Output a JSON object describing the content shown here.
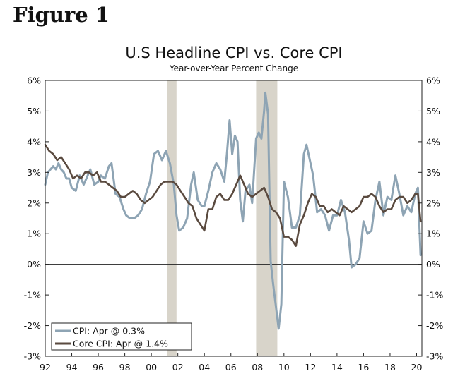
{
  "figure_label": "Figure 1",
  "chart_data": {
    "type": "line",
    "title": "U.S Headline CPI vs. Core CPI",
    "subtitle": "Year-over-Year Percent Change",
    "x_range": [
      1992,
      2020.4
    ],
    "ylim": [
      -3,
      6
    ],
    "y_ticks": [
      6,
      5,
      4,
      3,
      2,
      1,
      0,
      -1,
      -2,
      -3
    ],
    "y_tick_labels": [
      "6%",
      "5%",
      "4%",
      "3%",
      "2%",
      "1%",
      "0%",
      "-1%",
      "-2%",
      "-3%"
    ],
    "x_ticks": [
      1992,
      1994,
      1996,
      1998,
      2000,
      2002,
      2004,
      2006,
      2008,
      2010,
      2012,
      2014,
      2016,
      2018,
      2020
    ],
    "x_tick_labels": [
      "92",
      "94",
      "96",
      "98",
      "00",
      "02",
      "04",
      "06",
      "08",
      "10",
      "12",
      "14",
      "16",
      "18",
      "20"
    ],
    "recessions": [
      {
        "start": 2001.2,
        "end": 2001.9
      },
      {
        "start": 2007.9,
        "end": 2009.5
      }
    ],
    "legend": {
      "position": "bottom-left"
    },
    "series": [
      {
        "name": "CPI",
        "legend_label": "CPI: Apr @ 0.3%",
        "color": "#8ea4b4",
        "x": [
          1992.0,
          1992.2,
          1992.4,
          1992.6,
          1992.8,
          1993.0,
          1993.2,
          1993.4,
          1993.6,
          1993.8,
          1994.0,
          1994.3,
          1994.6,
          1994.9,
          1995.2,
          1995.4,
          1995.7,
          1996.0,
          1996.2,
          1996.5,
          1996.8,
          1997.0,
          1997.3,
          1997.6,
          1997.9,
          1998.1,
          1998.4,
          1998.7,
          1999.0,
          1999.3,
          1999.6,
          1999.9,
          2000.2,
          2000.5,
          2000.8,
          2001.1,
          2001.4,
          2001.7,
          2001.9,
          2002.1,
          2002.4,
          2002.7,
          2003.0,
          2003.2,
          2003.5,
          2003.8,
          2004.0,
          2004.3,
          2004.6,
          2004.9,
          2005.2,
          2005.5,
          2005.7,
          2005.9,
          2006.1,
          2006.3,
          2006.5,
          2006.7,
          2006.9,
          2007.1,
          2007.4,
          2007.6,
          2007.9,
          2008.1,
          2008.3,
          2008.5,
          2008.6,
          2008.8,
          2009.0,
          2009.2,
          2009.4,
          2009.6,
          2009.8,
          2010.0,
          2010.3,
          2010.6,
          2010.9,
          2011.2,
          2011.5,
          2011.7,
          2011.9,
          2012.2,
          2012.5,
          2012.8,
          2013.1,
          2013.4,
          2013.7,
          2014.0,
          2014.3,
          2014.6,
          2014.9,
          2015.1,
          2015.4,
          2015.7,
          2016.0,
          2016.3,
          2016.6,
          2016.9,
          2017.2,
          2017.5,
          2017.8,
          2018.1,
          2018.4,
          2018.7,
          2019.0,
          2019.3,
          2019.6,
          2019.9,
          2020.1,
          2020.3
        ],
        "values": [
          2.6,
          3.0,
          3.1,
          3.2,
          3.1,
          3.3,
          3.1,
          3.0,
          2.8,
          2.8,
          2.5,
          2.4,
          2.9,
          2.6,
          2.9,
          3.1,
          2.6,
          2.7,
          2.9,
          2.8,
          3.2,
          3.3,
          2.3,
          2.2,
          1.8,
          1.6,
          1.5,
          1.5,
          1.6,
          1.8,
          2.3,
          2.7,
          3.6,
          3.7,
          3.4,
          3.7,
          3.3,
          2.6,
          1.6,
          1.1,
          1.2,
          1.5,
          2.6,
          3.0,
          2.1,
          1.9,
          1.9,
          2.4,
          3.0,
          3.3,
          3.1,
          2.7,
          3.6,
          4.7,
          3.6,
          4.2,
          4.0,
          2.1,
          1.4,
          2.4,
          2.6,
          2.0,
          4.1,
          4.3,
          4.1,
          5.0,
          5.6,
          4.9,
          0.1,
          -0.7,
          -1.4,
          -2.1,
          -1.3,
          2.7,
          2.2,
          1.2,
          1.2,
          1.6,
          3.6,
          3.9,
          3.5,
          2.9,
          1.7,
          1.8,
          1.6,
          1.1,
          1.6,
          1.6,
          2.1,
          1.7,
          0.8,
          -0.1,
          0.0,
          0.2,
          1.4,
          1.0,
          1.1,
          2.1,
          2.7,
          1.6,
          2.2,
          2.1,
          2.9,
          2.3,
          1.6,
          1.9,
          1.7,
          2.3,
          2.5,
          0.3
        ]
      },
      {
        "name": "Core CPI",
        "legend_label": "Core CPI: Apr @ 1.4%",
        "color": "#5a4a3f",
        "x": [
          1992.0,
          1992.3,
          1992.6,
          1992.9,
          1993.2,
          1993.5,
          1993.8,
          1994.1,
          1994.4,
          1994.7,
          1995.0,
          1995.3,
          1995.6,
          1995.9,
          1996.2,
          1996.5,
          1996.8,
          1997.1,
          1997.4,
          1997.7,
          1998.0,
          1998.3,
          1998.6,
          1998.9,
          1999.2,
          1999.5,
          1999.8,
          2000.1,
          2000.4,
          2000.7,
          2001.0,
          2001.3,
          2001.6,
          2001.9,
          2002.2,
          2002.5,
          2002.8,
          2003.1,
          2003.4,
          2003.7,
          2004.0,
          2004.3,
          2004.6,
          2004.9,
          2005.2,
          2005.5,
          2005.8,
          2006.1,
          2006.4,
          2006.7,
          2007.0,
          2007.3,
          2007.6,
          2007.9,
          2008.2,
          2008.5,
          2008.8,
          2009.1,
          2009.4,
          2009.7,
          2010.0,
          2010.3,
          2010.6,
          2010.9,
          2011.2,
          2011.5,
          2011.8,
          2012.1,
          2012.4,
          2012.7,
          2013.0,
          2013.3,
          2013.6,
          2013.9,
          2014.2,
          2014.5,
          2014.8,
          2015.1,
          2015.4,
          2015.7,
          2016.0,
          2016.3,
          2016.6,
          2016.9,
          2017.2,
          2017.5,
          2017.8,
          2018.1,
          2018.4,
          2018.7,
          2019.0,
          2019.3,
          2019.6,
          2019.9,
          2020.1,
          2020.3
        ],
        "values": [
          3.9,
          3.7,
          3.6,
          3.4,
          3.5,
          3.3,
          3.1,
          2.8,
          2.9,
          2.8,
          3.0,
          3.0,
          2.9,
          3.0,
          2.7,
          2.7,
          2.6,
          2.5,
          2.4,
          2.2,
          2.2,
          2.3,
          2.4,
          2.3,
          2.1,
          2.0,
          2.1,
          2.2,
          2.4,
          2.6,
          2.7,
          2.7,
          2.7,
          2.6,
          2.4,
          2.2,
          2.0,
          1.9,
          1.5,
          1.3,
          1.1,
          1.8,
          1.8,
          2.2,
          2.3,
          2.1,
          2.1,
          2.3,
          2.6,
          2.9,
          2.6,
          2.3,
          2.2,
          2.3,
          2.4,
          2.5,
          2.2,
          1.8,
          1.7,
          1.5,
          0.9,
          0.9,
          0.8,
          0.6,
          1.3,
          1.6,
          2.0,
          2.3,
          2.2,
          1.9,
          1.9,
          1.7,
          1.8,
          1.7,
          1.6,
          1.9,
          1.8,
          1.7,
          1.8,
          1.9,
          2.2,
          2.2,
          2.3,
          2.2,
          1.9,
          1.7,
          1.8,
          1.8,
          2.1,
          2.2,
          2.2,
          2.0,
          2.1,
          2.3,
          2.3,
          1.4
        ]
      }
    ]
  }
}
